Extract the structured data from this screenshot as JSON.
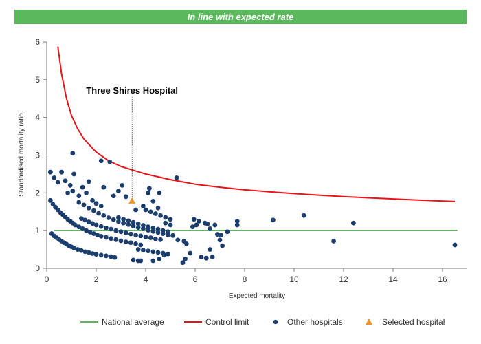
{
  "banner": {
    "text": "In line with expected rate"
  },
  "chart_data": {
    "type": "scatter",
    "xlabel": "Expected mortality",
    "ylabel": "Standardised mortality ratio",
    "xlim": [
      0,
      17
    ],
    "ylim": [
      0,
      6
    ],
    "x_ticks": [
      "0",
      "2",
      "4",
      "6",
      "8",
      "10",
      "12",
      "14",
      "16"
    ],
    "y_ticks": [
      "0",
      "1",
      "2",
      "3",
      "4",
      "5",
      "6"
    ],
    "grid": false,
    "legend_position": "bottom",
    "annotation": {
      "text": "Three Shires Hospital",
      "x": 3.45,
      "y": 1.78
    },
    "colors": {
      "national": "#5cb85c",
      "control": "#e8141a",
      "other": "#1c3e6e",
      "selected": "#f0922b"
    },
    "series": [
      {
        "name": "National average",
        "kind": "line",
        "points": [
          [
            0.3,
            1
          ],
          [
            16.6,
            1
          ]
        ]
      },
      {
        "name": "Control limit",
        "kind": "line",
        "points": [
          [
            0.45,
            5.88
          ],
          [
            0.6,
            5.15
          ],
          [
            0.8,
            4.5
          ],
          [
            1.0,
            4.05
          ],
          [
            1.25,
            3.7
          ],
          [
            1.5,
            3.43
          ],
          [
            2.0,
            3.08
          ],
          [
            2.5,
            2.85
          ],
          [
            3.0,
            2.7
          ],
          [
            3.5,
            2.6
          ],
          [
            4.0,
            2.5
          ],
          [
            5.0,
            2.35
          ],
          [
            6.0,
            2.23
          ],
          [
            7.0,
            2.15
          ],
          [
            8.0,
            2.08
          ],
          [
            9.0,
            2.03
          ],
          [
            10.0,
            1.98
          ],
          [
            11.0,
            1.94
          ],
          [
            12.0,
            1.9
          ],
          [
            13.0,
            1.87
          ],
          [
            14.0,
            1.84
          ],
          [
            15.0,
            1.81
          ],
          [
            16.5,
            1.77
          ]
        ]
      },
      {
        "name": "Other hospitals",
        "kind": "scatter",
        "points": [
          [
            0.15,
            2.55
          ],
          [
            0.3,
            2.4
          ],
          [
            0.45,
            2.28
          ],
          [
            0.6,
            2.55
          ],
          [
            0.75,
            2.32
          ],
          [
            0.85,
            2.0
          ],
          [
            0.95,
            2.2
          ],
          [
            1.05,
            3.05
          ],
          [
            1.1,
            2.5
          ],
          [
            1.05,
            2.05
          ],
          [
            1.3,
            1.92
          ],
          [
            1.45,
            2.15
          ],
          [
            1.6,
            2.0
          ],
          [
            1.7,
            2.3
          ],
          [
            1.85,
            1.8
          ],
          [
            2.0,
            1.72
          ],
          [
            2.2,
            1.65
          ],
          [
            2.2,
            2.85
          ],
          [
            2.3,
            2.15
          ],
          [
            2.55,
            2.82
          ],
          [
            2.7,
            1.92
          ],
          [
            2.9,
            2.05
          ],
          [
            3.05,
            2.2
          ],
          [
            3.2,
            1.9
          ],
          [
            3.6,
            1.55
          ],
          [
            3.9,
            1.65
          ],
          [
            4.1,
            2.0
          ],
          [
            4.15,
            2.12
          ],
          [
            4.3,
            1.78
          ],
          [
            4.5,
            1.6
          ],
          [
            4.55,
            2.0
          ],
          [
            5.25,
            2.4
          ],
          [
            0.15,
            1.8
          ],
          [
            0.25,
            1.7
          ],
          [
            0.35,
            1.62
          ],
          [
            0.45,
            1.55
          ],
          [
            0.55,
            1.48
          ],
          [
            0.65,
            1.42
          ],
          [
            0.75,
            1.36
          ],
          [
            0.85,
            1.3
          ],
          [
            0.95,
            1.25
          ],
          [
            1.05,
            1.2
          ],
          [
            1.15,
            1.15
          ],
          [
            1.3,
            1.1
          ],
          [
            1.45,
            1.05
          ],
          [
            1.6,
            1.0
          ],
          [
            1.75,
            0.96
          ],
          [
            1.9,
            0.92
          ],
          [
            2.05,
            0.88
          ],
          [
            2.2,
            0.85
          ],
          [
            2.4,
            0.82
          ],
          [
            2.6,
            0.79
          ],
          [
            2.8,
            0.76
          ],
          [
            3.0,
            0.73
          ],
          [
            3.2,
            0.7
          ],
          [
            3.4,
            0.68
          ],
          [
            3.6,
            0.65
          ],
          [
            3.8,
            0.62
          ],
          [
            0.2,
            0.92
          ],
          [
            0.3,
            0.86
          ],
          [
            0.4,
            0.81
          ],
          [
            0.5,
            0.76
          ],
          [
            0.6,
            0.72
          ],
          [
            0.7,
            0.68
          ],
          [
            0.8,
            0.64
          ],
          [
            0.9,
            0.6
          ],
          [
            1.0,
            0.57
          ],
          [
            1.1,
            0.54
          ],
          [
            1.25,
            0.5
          ],
          [
            1.4,
            0.47
          ],
          [
            1.55,
            0.44
          ],
          [
            1.7,
            0.42
          ],
          [
            1.85,
            0.39
          ],
          [
            2.0,
            0.37
          ],
          [
            2.2,
            0.35
          ],
          [
            2.4,
            0.33
          ],
          [
            2.6,
            0.31
          ],
          [
            2.75,
            0.29
          ],
          [
            1.4,
            1.32
          ],
          [
            1.55,
            1.28
          ],
          [
            1.7,
            1.23
          ],
          [
            1.85,
            1.19
          ],
          [
            2.0,
            1.15
          ],
          [
            2.2,
            1.11
          ],
          [
            2.4,
            1.07
          ],
          [
            2.6,
            1.04
          ],
          [
            2.8,
            1.0
          ],
          [
            3.0,
            0.97
          ],
          [
            3.2,
            0.94
          ],
          [
            3.4,
            0.91
          ],
          [
            3.6,
            0.88
          ],
          [
            3.8,
            0.86
          ],
          [
            4.0,
            0.83
          ],
          [
            4.2,
            0.81
          ],
          [
            4.4,
            0.78
          ],
          [
            4.6,
            0.76
          ],
          [
            1.3,
            1.75
          ],
          [
            1.5,
            1.68
          ],
          [
            1.7,
            1.6
          ],
          [
            1.9,
            1.53
          ],
          [
            2.1,
            1.46
          ],
          [
            2.3,
            1.4
          ],
          [
            2.5,
            1.34
          ],
          [
            2.7,
            1.29
          ],
          [
            2.9,
            1.24
          ],
          [
            3.1,
            1.2
          ],
          [
            3.3,
            1.16
          ],
          [
            3.5,
            1.12
          ],
          [
            3.7,
            1.08
          ],
          [
            3.9,
            1.05
          ],
          [
            4.1,
            1.01
          ],
          [
            4.3,
            0.98
          ],
          [
            4.5,
            0.95
          ],
          [
            4.7,
            0.92
          ],
          [
            4.9,
            0.89
          ],
          [
            5.1,
            0.87
          ],
          [
            2.9,
            1.35
          ],
          [
            3.1,
            1.3
          ],
          [
            3.3,
            1.26
          ],
          [
            3.5,
            1.22
          ],
          [
            3.7,
            1.18
          ],
          [
            3.9,
            1.14
          ],
          [
            4.1,
            1.1
          ],
          [
            4.3,
            1.07
          ],
          [
            4.5,
            1.04
          ],
          [
            4.7,
            1.0
          ],
          [
            4.9,
            0.97
          ],
          [
            4.0,
            1.55
          ],
          [
            4.2,
            1.5
          ],
          [
            4.4,
            1.45
          ],
          [
            4.6,
            1.4
          ],
          [
            4.8,
            1.35
          ],
          [
            5.0,
            1.3
          ],
          [
            4.8,
            1.2
          ],
          [
            5.0,
            1.15
          ],
          [
            3.7,
            0.5
          ],
          [
            3.9,
            0.48
          ],
          [
            4.1,
            0.46
          ],
          [
            4.3,
            0.44
          ],
          [
            4.5,
            0.42
          ],
          [
            4.7,
            0.4
          ],
          [
            4.9,
            0.38
          ],
          [
            3.5,
            0.22
          ],
          [
            3.7,
            0.2
          ],
          [
            3.8,
            0.2
          ],
          [
            4.3,
            0.2
          ],
          [
            4.55,
            0.25
          ],
          [
            4.75,
            0.35
          ],
          [
            5.5,
            0.15
          ],
          [
            5.6,
            0.25
          ],
          [
            5.8,
            0.4
          ],
          [
            6.25,
            0.3
          ],
          [
            6.45,
            0.27
          ],
          [
            6.6,
            0.5
          ],
          [
            6.7,
            0.3
          ],
          [
            5.3,
            0.75
          ],
          [
            5.55,
            0.72
          ],
          [
            5.65,
            0.65
          ],
          [
            5.9,
            1.1
          ],
          [
            5.95,
            1.3
          ],
          [
            6.05,
            1.15
          ],
          [
            6.15,
            1.25
          ],
          [
            6.4,
            1.2
          ],
          [
            6.5,
            1.18
          ],
          [
            6.6,
            1.05
          ],
          [
            6.8,
            1.15
          ],
          [
            6.9,
            0.9
          ],
          [
            7.0,
            0.75
          ],
          [
            7.05,
            0.88
          ],
          [
            7.1,
            0.6
          ],
          [
            7.3,
            0.97
          ],
          [
            7.7,
            1.25
          ],
          [
            7.7,
            1.15
          ],
          [
            9.15,
            1.28
          ],
          [
            10.4,
            1.4
          ],
          [
            11.6,
            0.72
          ],
          [
            12.4,
            1.2
          ],
          [
            16.5,
            0.62
          ]
        ]
      },
      {
        "name": "Selected hospital",
        "kind": "scatter",
        "points": [
          [
            3.45,
            1.78
          ]
        ]
      }
    ]
  }
}
